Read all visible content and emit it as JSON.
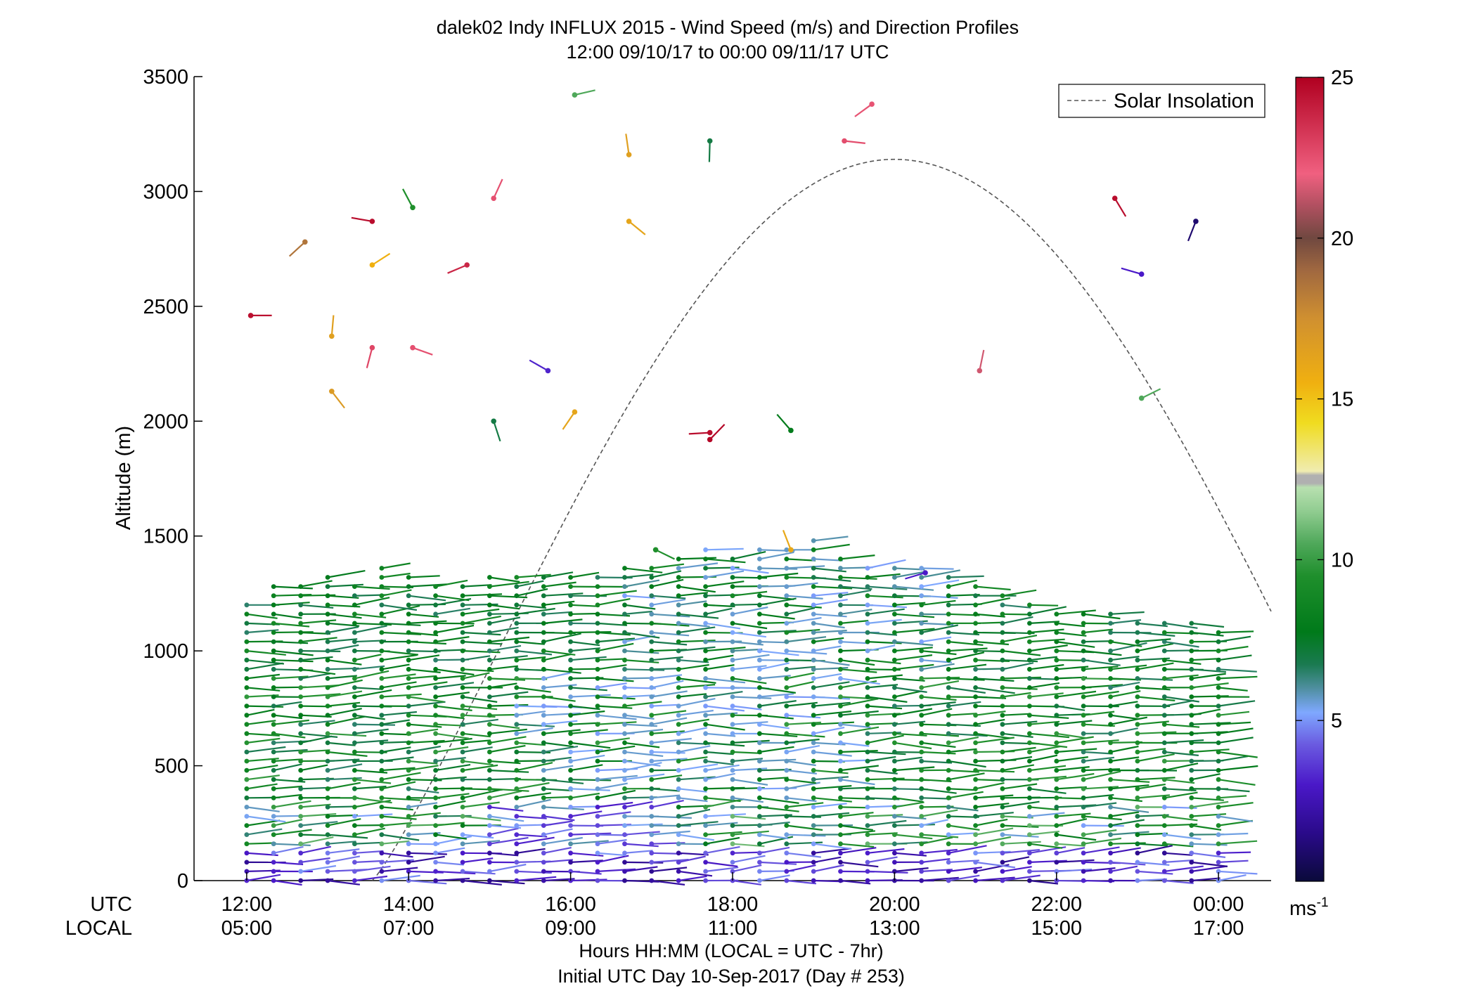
{
  "chart_data": {
    "type": "scatter",
    "title": "dalek02 Indy INFLUX 2015 - Wind Speed (m/s) and Direction Profiles",
    "subtitle": "12:00 09/10/17 to 00:00 09/11/17  UTC",
    "ylabel": "Altitude (m)",
    "xlabel": "Hours HH:MM  (LOCAL = UTC - 7hr)",
    "footnote": "Initial UTC Day 10-Sep-2017 (Day # 253)",
    "xlim": [
      11.35,
      24.65
    ],
    "ylim": [
      0,
      3500
    ],
    "x_tick_values": [
      12,
      14,
      16,
      18,
      20,
      22,
      24
    ],
    "x_row_labels": {
      "utc": "UTC",
      "local": "LOCAL"
    },
    "x_ticks_utc": [
      "12:00",
      "14:00",
      "16:00",
      "18:00",
      "20:00",
      "22:00",
      "00:00"
    ],
    "x_ticks_local": [
      "05:00",
      "07:00",
      "09:00",
      "11:00",
      "13:00",
      "15:00",
      "17:00"
    ],
    "y_ticks": [
      0,
      500,
      1000,
      1500,
      2000,
      2500,
      3000,
      3500
    ],
    "legend": {
      "entries": [
        "Solar Insolation"
      ],
      "placement": "top-right"
    },
    "colorbar": {
      "range": [
        0,
        25
      ],
      "ticks": [
        5,
        10,
        15,
        20,
        25
      ],
      "unit_base": "ms",
      "unit_exp": "-1"
    },
    "solar_insolation": {
      "style": "dashed",
      "color": "#555555",
      "peak_time": 20.0,
      "peak_altitude": 3140,
      "start_time": 13.55,
      "end_time": 24.65
    },
    "grid": false,
    "dense_profiles": {
      "times": [
        12.0,
        12.333,
        12.667,
        13.0,
        13.333,
        13.667,
        14.0,
        14.333,
        14.667,
        15.0,
        15.333,
        15.667,
        16.0,
        16.333,
        16.667,
        17.0,
        17.333,
        17.667,
        18.0,
        18.333,
        18.667,
        19.0,
        19.333,
        19.667,
        20.0,
        20.333,
        20.667,
        21.0,
        21.333,
        21.667,
        22.0,
        22.333,
        22.667,
        23.0,
        23.333,
        23.667,
        24.0
      ],
      "tops": [
        1210,
        1280,
        1300,
        1320,
        1300,
        1370,
        1330,
        1300,
        1300,
        1330,
        1340,
        1330,
        1330,
        1320,
        1380,
        1390,
        1420,
        1440,
        1430,
        1440,
        1460,
        1480,
        1400,
        1390,
        1380,
        1370,
        1330,
        1280,
        1260,
        1200,
        1180,
        1170,
        1160,
        1150,
        1140,
        1120,
        1090
      ],
      "level_step_m": 40
    },
    "upper_barbs": [
      {
        "t": 12.05,
        "alt": 2460,
        "speed": 24.5
      },
      {
        "t": 12.72,
        "alt": 2780,
        "speed": 18.5
      },
      {
        "t": 13.05,
        "alt": 2370,
        "speed": 16.5
      },
      {
        "t": 13.05,
        "alt": 2130,
        "speed": 16.8
      },
      {
        "t": 13.55,
        "alt": 2870,
        "speed": 24.6
      },
      {
        "t": 13.55,
        "alt": 2680,
        "speed": 15.5
      },
      {
        "t": 13.55,
        "alt": 2320,
        "speed": 22.8
      },
      {
        "t": 14.05,
        "alt": 2930,
        "speed": 9.5
      },
      {
        "t": 14.05,
        "alt": 2320,
        "speed": 22.5
      },
      {
        "t": 14.72,
        "alt": 2680,
        "speed": 23.8
      },
      {
        "t": 15.05,
        "alt": 2970,
        "speed": 22.5
      },
      {
        "t": 15.05,
        "alt": 2000,
        "speed": 7.0
      },
      {
        "t": 15.72,
        "alt": 2220,
        "speed": 3.2
      },
      {
        "t": 16.05,
        "alt": 3420,
        "speed": 10.5
      },
      {
        "t": 16.05,
        "alt": 2040,
        "speed": 16.2
      },
      {
        "t": 16.72,
        "alt": 3160,
        "speed": 16.5
      },
      {
        "t": 16.72,
        "alt": 2870,
        "speed": 16.2
      },
      {
        "t": 17.72,
        "alt": 1950,
        "speed": 24.6
      },
      {
        "t": 17.72,
        "alt": 1920,
        "speed": 24.8
      },
      {
        "t": 17.72,
        "alt": 3220,
        "speed": 7.0
      },
      {
        "t": 18.72,
        "alt": 1960,
        "speed": 7.8
      },
      {
        "t": 19.38,
        "alt": 3220,
        "speed": 22.6
      },
      {
        "t": 19.72,
        "alt": 3380,
        "speed": 22.4
      },
      {
        "t": 21.05,
        "alt": 2220,
        "speed": 21.5
      },
      {
        "t": 22.72,
        "alt": 2970,
        "speed": 24.6
      },
      {
        "t": 23.05,
        "alt": 2640,
        "speed": 3.0
      },
      {
        "t": 23.05,
        "alt": 2100,
        "speed": 10.5
      },
      {
        "t": 23.72,
        "alt": 2870,
        "speed": 1.0
      },
      {
        "t": 18.72,
        "alt": 1440,
        "speed": 16.0
      },
      {
        "t": 17.05,
        "alt": 1440,
        "speed": 9.5
      },
      {
        "t": 20.38,
        "alt": 1340,
        "speed": 3.0
      }
    ]
  }
}
